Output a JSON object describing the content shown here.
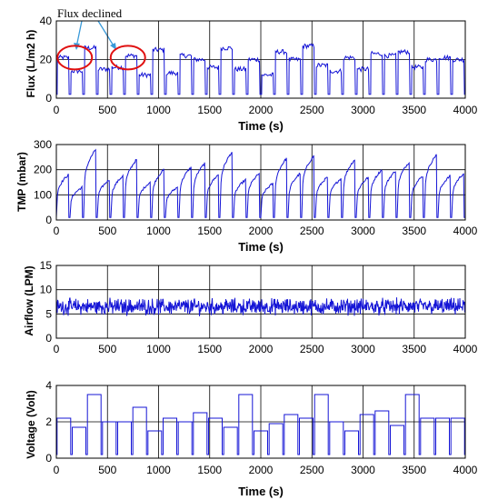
{
  "chart_data": [
    {
      "type": "line",
      "xlabel": "Time (s)",
      "ylabel": "Flux (L/m2 h)",
      "xlim": [
        0,
        4000
      ],
      "ylim": [
        0,
        40
      ],
      "xticks": [
        0,
        500,
        1000,
        1500,
        2000,
        2500,
        3000,
        3500,
        4000
      ],
      "yticks": [
        0,
        20,
        40
      ],
      "grid": "vertical-and-horizontal",
      "series_color": "#1515d6",
      "annotation": {
        "text": "Flux declined",
        "circles": [
          {
            "x": 180,
            "y": 21
          },
          {
            "x": 700,
            "y": 21
          }
        ]
      },
      "levels": [
        21,
        14,
        26,
        15,
        16,
        22,
        12,
        25,
        13,
        22,
        20,
        16,
        26,
        15,
        20,
        12,
        24,
        20,
        27,
        17,
        14,
        21,
        15,
        23,
        22,
        24,
        16,
        20,
        21,
        20
      ],
      "low_value": 2
    },
    {
      "type": "line",
      "xlabel": "Time (s)",
      "ylabel": "TMP (mbar)",
      "xlim": [
        0,
        4000
      ],
      "ylim": [
        0,
        300
      ],
      "xticks": [
        0,
        500,
        1000,
        1500,
        2000,
        2500,
        3000,
        3500,
        4000
      ],
      "yticks": [
        0,
        100,
        200,
        300
      ],
      "grid": "vertical-and-horizontal",
      "series_color": "#1515d6",
      "levels": [
        180,
        130,
        280,
        160,
        175,
        240,
        150,
        200,
        130,
        210,
        225,
        180,
        270,
        160,
        185,
        145,
        245,
        185,
        255,
        170,
        165,
        240,
        170,
        200,
        195,
        230,
        175,
        260,
        175,
        185
      ],
      "low_value": 10
    },
    {
      "type": "line",
      "xlabel": "",
      "ylabel": "Airflow (LPM)",
      "xlim": [
        0,
        4000
      ],
      "ylim": [
        0,
        15
      ],
      "xticks": [
        0,
        500,
        1000,
        1500,
        2000,
        2500,
        3000,
        3500,
        4000
      ],
      "yticks": [
        0,
        5,
        10,
        15
      ],
      "grid": "vertical-and-horizontal",
      "series_color": "#1515d6",
      "mean": 6.5,
      "range": [
        3,
        10
      ]
    },
    {
      "type": "line",
      "xlabel": "Time (s)",
      "ylabel": "Voltage (Volt)",
      "xlim": [
        0,
        4000
      ],
      "ylim": [
        0,
        4
      ],
      "xticks": [
        0,
        500,
        1000,
        1500,
        2000,
        2500,
        3000,
        3500,
        4000
      ],
      "yticks": [
        0,
        2,
        4
      ],
      "grid": "vertical-and-horizontal",
      "series_color": "#1515d6",
      "levels": [
        2.2,
        1.7,
        3.5,
        2.0,
        2.0,
        2.8,
        1.5,
        2.2,
        2.0,
        2.5,
        2.2,
        1.7,
        3.5,
        1.5,
        1.9,
        2.4,
        2.2,
        3.5,
        2.0,
        1.5,
        2.4,
        2.6,
        1.8,
        3.5,
        2.2,
        2.2,
        2.2
      ],
      "low_value": 0.2
    }
  ]
}
